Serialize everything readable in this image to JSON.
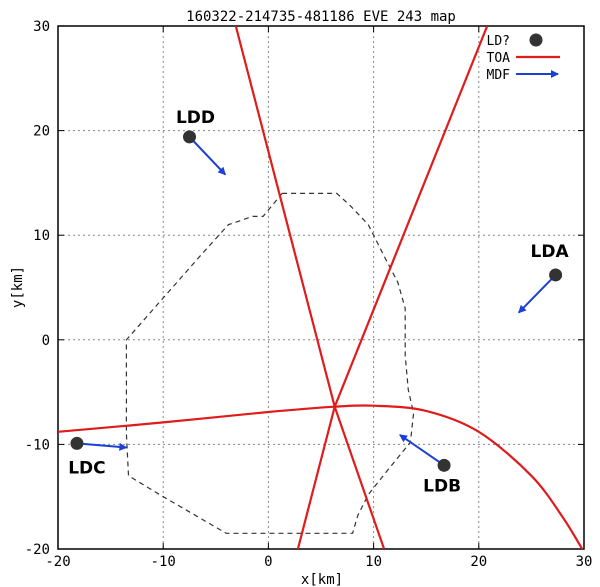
{
  "chart_data": {
    "type": "scatter",
    "title": "160322-214735-481186 EVE 243 map",
    "xlabel": "x[km]",
    "ylabel": "y[km]",
    "xlim": [
      -20,
      30
    ],
    "ylim": [
      -20,
      30
    ],
    "xticks": [
      -20,
      -10,
      0,
      10,
      20,
      30
    ],
    "yticks": [
      -20,
      -10,
      0,
      10,
      20,
      30
    ],
    "xtick_labels": [
      "-20",
      "-10",
      "0",
      "10",
      "20",
      "30"
    ],
    "ytick_labels": [
      "-20",
      "-10",
      "0",
      "10",
      "20",
      "30"
    ],
    "grid": true,
    "legend_position": "top-right",
    "legend": [
      {
        "label": "LD?",
        "kind": "point",
        "color": "#333333"
      },
      {
        "label": "TOA",
        "kind": "line",
        "color": "#e01b1b"
      },
      {
        "label": "MDF",
        "kind": "arrow",
        "color": "#1c3fd6"
      }
    ],
    "stations": [
      {
        "name": "LDA",
        "x": 27.3,
        "y": 6.2
      },
      {
        "name": "LDB",
        "x": 16.7,
        "y": -12.0
      },
      {
        "name": "LDC",
        "x": -18.2,
        "y": -9.9
      },
      {
        "name": "LDD",
        "x": -7.5,
        "y": 19.4
      }
    ],
    "mdf_arrows": [
      {
        "station": "LDA",
        "from": [
          27.3,
          6.2
        ],
        "to": [
          23.8,
          2.6
        ]
      },
      {
        "station": "LDB",
        "from": [
          16.7,
          -12.0
        ],
        "to": [
          12.5,
          -9.1
        ]
      },
      {
        "station": "LDC",
        "from": [
          -18.2,
          -9.9
        ],
        "to": [
          -13.5,
          -10.3
        ]
      },
      {
        "station": "LDD",
        "from": [
          -7.5,
          19.4
        ],
        "to": [
          -4.1,
          15.8
        ]
      }
    ],
    "toa_curves": [
      {
        "points": [
          [
            -3.1,
            30.0
          ],
          [
            6.3,
            -6.4
          ],
          [
            11.0,
            -20.0
          ]
        ]
      },
      {
        "points": [
          [
            20.8,
            30.0
          ],
          [
            6.3,
            -6.4
          ],
          [
            2.8,
            -20.0
          ]
        ]
      },
      {
        "points": [
          [
            -20.0,
            -8.8
          ],
          [
            -10.0,
            -7.9
          ],
          [
            0.0,
            -6.9
          ],
          [
            6.3,
            -6.4
          ],
          [
            10.0,
            -6.3
          ],
          [
            15.0,
            -6.8
          ],
          [
            20.0,
            -8.8
          ],
          [
            25.0,
            -13.0
          ],
          [
            28.0,
            -17.0
          ],
          [
            30.0,
            -20.3
          ]
        ]
      }
    ],
    "network_boundary": [
      [
        1.3,
        14.0
      ],
      [
        6.5,
        14.0
      ],
      [
        7.8,
        12.8
      ],
      [
        9.5,
        11.0
      ],
      [
        11.0,
        8.0
      ],
      [
        12.3,
        5.5
      ],
      [
        13.0,
        3.0
      ],
      [
        13.0,
        -1.5
      ],
      [
        13.3,
        -4.8
      ],
      [
        13.8,
        -7.0
      ],
      [
        13.5,
        -9.8
      ],
      [
        11.3,
        -12.5
      ],
      [
        9.5,
        -14.8
      ],
      [
        8.5,
        -16.8
      ],
      [
        8.0,
        -18.5
      ],
      [
        -4.0,
        -18.5
      ],
      [
        -10.0,
        -15.0
      ],
      [
        -13.3,
        -13.0
      ],
      [
        -13.5,
        -9.0
      ],
      [
        -13.5,
        0.0
      ],
      [
        -10.0,
        4.0
      ],
      [
        -6.5,
        8.0
      ],
      [
        -3.8,
        11.0
      ],
      [
        -1.5,
        11.8
      ],
      [
        -0.5,
        11.8
      ],
      [
        1.3,
        14.0
      ]
    ]
  }
}
